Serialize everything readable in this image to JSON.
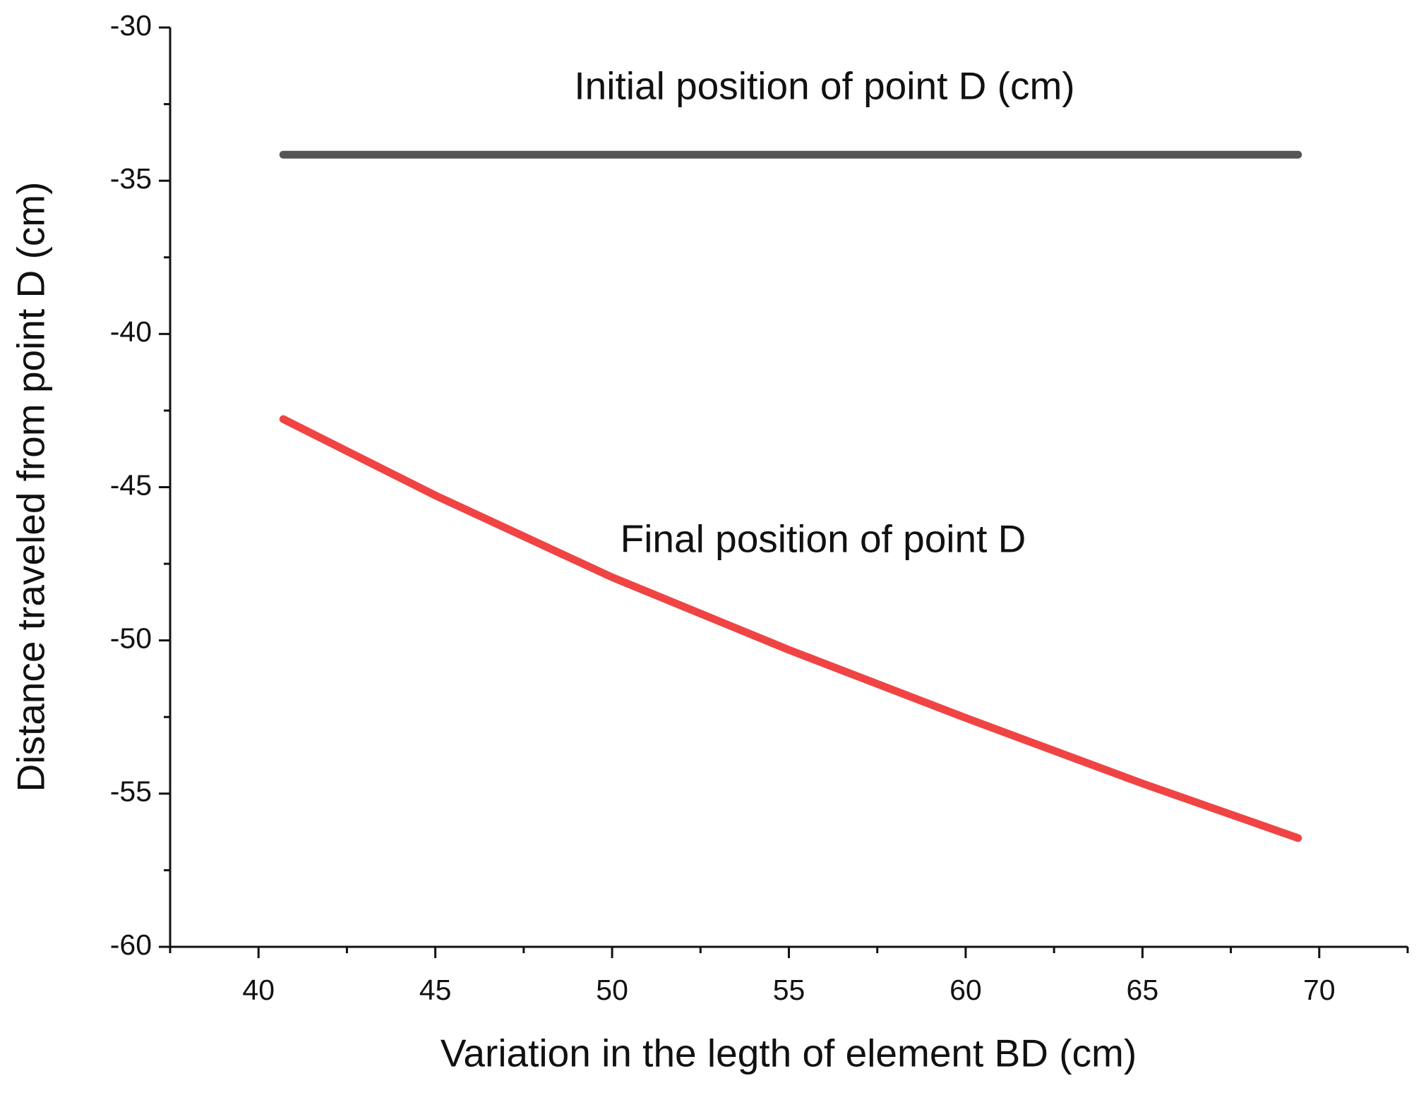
{
  "chart_data": {
    "type": "line",
    "x_label": "Variation in the legth of element BD (cm)",
    "y_label": "Distance traveled from point D (cm)",
    "xlim": [
      37.5,
      72.5
    ],
    "xticks": [
      40,
      45,
      50,
      55,
      60,
      65,
      70
    ],
    "ylim": [
      -60,
      -30
    ],
    "yticks": [
      -60,
      -55,
      -50,
      -45,
      -40,
      -35,
      -30
    ],
    "x_minor_ticks": [
      37.5,
      42.5,
      47.5,
      52.5,
      57.5,
      62.5,
      67.5,
      72.5
    ],
    "y_minor_ticks": [
      -57.5,
      -52.5,
      -47.5,
      -42.5,
      -37.5,
      -32.5
    ],
    "grid": false,
    "series": [
      {
        "name": "Initial position of point D (cm)",
        "color": "#555555",
        "x": [
          40.7,
          69.4
        ],
        "values": [
          -34.15,
          -34.15
        ]
      },
      {
        "name": "Final position of point D",
        "color": "#f04444",
        "x": [
          40.7,
          45,
          50,
          55,
          60,
          65,
          69.4
        ],
        "values": [
          -42.78,
          -45.27,
          -47.94,
          -50.31,
          -52.53,
          -54.67,
          -56.45
        ]
      }
    ]
  }
}
